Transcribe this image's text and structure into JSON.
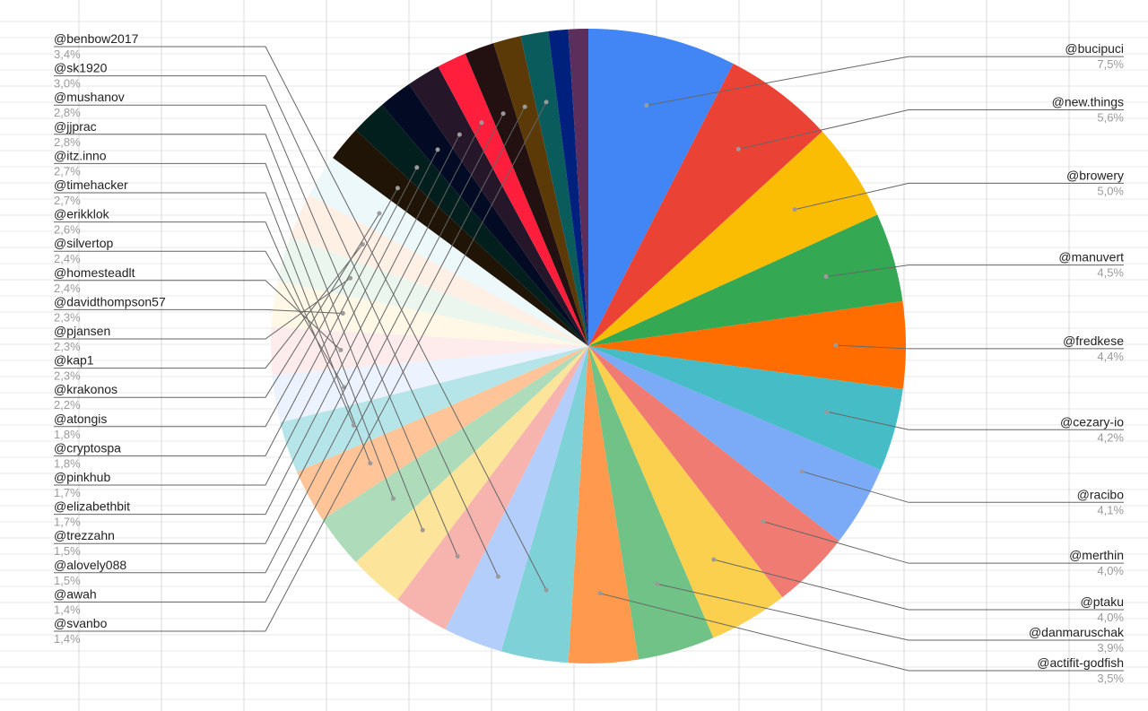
{
  "chart_data": {
    "type": "pie",
    "start": "top",
    "direction": "clockwise",
    "slices": [
      {
        "label": "@bucipuci",
        "pct_label": "7,5%",
        "value": 7.5,
        "color": "#4285f4"
      },
      {
        "label": "@new.things",
        "pct_label": "5,6%",
        "value": 5.6,
        "color": "#ea4335"
      },
      {
        "label": "@browery",
        "pct_label": "5,0%",
        "value": 5.0,
        "color": "#fbbc04"
      },
      {
        "label": "@manuvert",
        "pct_label": "4,5%",
        "value": 4.5,
        "color": "#34a853"
      },
      {
        "label": "@fredkese",
        "pct_label": "4,4%",
        "value": 4.4,
        "color": "#ff6d01"
      },
      {
        "label": "@cezary-io",
        "pct_label": "4,2%",
        "value": 4.2,
        "color": "#46bdc6"
      },
      {
        "label": "@racibo",
        "pct_label": "4,1%",
        "value": 4.1,
        "color": "#7baaf7"
      },
      {
        "label": "@merthin",
        "pct_label": "4,0%",
        "value": 4.0,
        "color": "#f07b72"
      },
      {
        "label": "@ptaku",
        "pct_label": "4,0%",
        "value": 4.0,
        "color": "#fcd04f"
      },
      {
        "label": "@danmaruschak",
        "pct_label": "3,9%",
        "value": 3.9,
        "color": "#71c287"
      },
      {
        "label": "@actifit-godfish",
        "pct_label": "3,5%",
        "value": 3.5,
        "color": "#ff994d"
      },
      {
        "label": "@benbow2017",
        "pct_label": "3,4%",
        "value": 3.4,
        "color": "#7ed1d7"
      },
      {
        "label": "@sk1920",
        "pct_label": "3,0%",
        "value": 3.0,
        "color": "#b3cefb"
      },
      {
        "label": "@mushanov",
        "pct_label": "2,8%",
        "value": 2.8,
        "color": "#f7b4ae"
      },
      {
        "label": "@jjprac",
        "pct_label": "2,8%",
        "value": 2.8,
        "color": "#fde49b"
      },
      {
        "label": "@itz.inno",
        "pct_label": "2,7%",
        "value": 2.7,
        "color": "#aedcba"
      },
      {
        "label": "@timehacker",
        "pct_label": "2,7%",
        "value": 2.7,
        "color": "#ffc599"
      },
      {
        "label": "@erikklok",
        "pct_label": "2,6%",
        "value": 2.6,
        "color": "#b5e5e8"
      },
      {
        "label": "@silvertop",
        "pct_label": "2,4%",
        "value": 2.4,
        "color": "#ecf2fe"
      },
      {
        "label": "@homesteadlt",
        "pct_label": "2,4%",
        "value": 2.4,
        "color": "#fdeceb"
      },
      {
        "label": "@davidthompson57",
        "pct_label": "2,3%",
        "value": 2.3,
        "color": "#fff8e6"
      },
      {
        "label": "@pjansen",
        "pct_label": "2,3%",
        "value": 2.3,
        "color": "#ebf6ee"
      },
      {
        "label": "@kap1",
        "pct_label": "2,3%",
        "value": 2.3,
        "color": "#fff0e6"
      },
      {
        "label": "@krakonos",
        "pct_label": "2,2%",
        "value": 2.2,
        "color": "#ecf8f9"
      },
      {
        "label": "@atongis",
        "pct_label": "1,8%",
        "value": 1.8,
        "color": "#1f1405"
      },
      {
        "label": "@cryptospa",
        "pct_label": "1,8%",
        "value": 1.8,
        "color": "#031f1d"
      },
      {
        "label": "@pinkhub",
        "pct_label": "1,7%",
        "value": 1.7,
        "color": "#020a24"
      },
      {
        "label": "@elizabethbit",
        "pct_label": "1,7%",
        "value": 1.7,
        "color": "#25162a"
      },
      {
        "label": "@trezzahn",
        "pct_label": "1,5%",
        "value": 1.5,
        "color": "#ff1f3c"
      },
      {
        "label": "@alovely088",
        "pct_label": "1,5%",
        "value": 1.5,
        "color": "#231010"
      },
      {
        "label": "@awah",
        "pct_label": "1,4%",
        "value": 1.4,
        "color": "#5c3a07"
      },
      {
        "label": "@svanbo",
        "pct_label": "1,4%",
        "value": 1.4,
        "color": "#0a5b5b"
      },
      {
        "label": "",
        "pct_label": "",
        "value": 1.0,
        "color": "#00207e"
      },
      {
        "label": "",
        "pct_label": "",
        "value": 1.0,
        "color": "#5b2e5b"
      }
    ]
  }
}
